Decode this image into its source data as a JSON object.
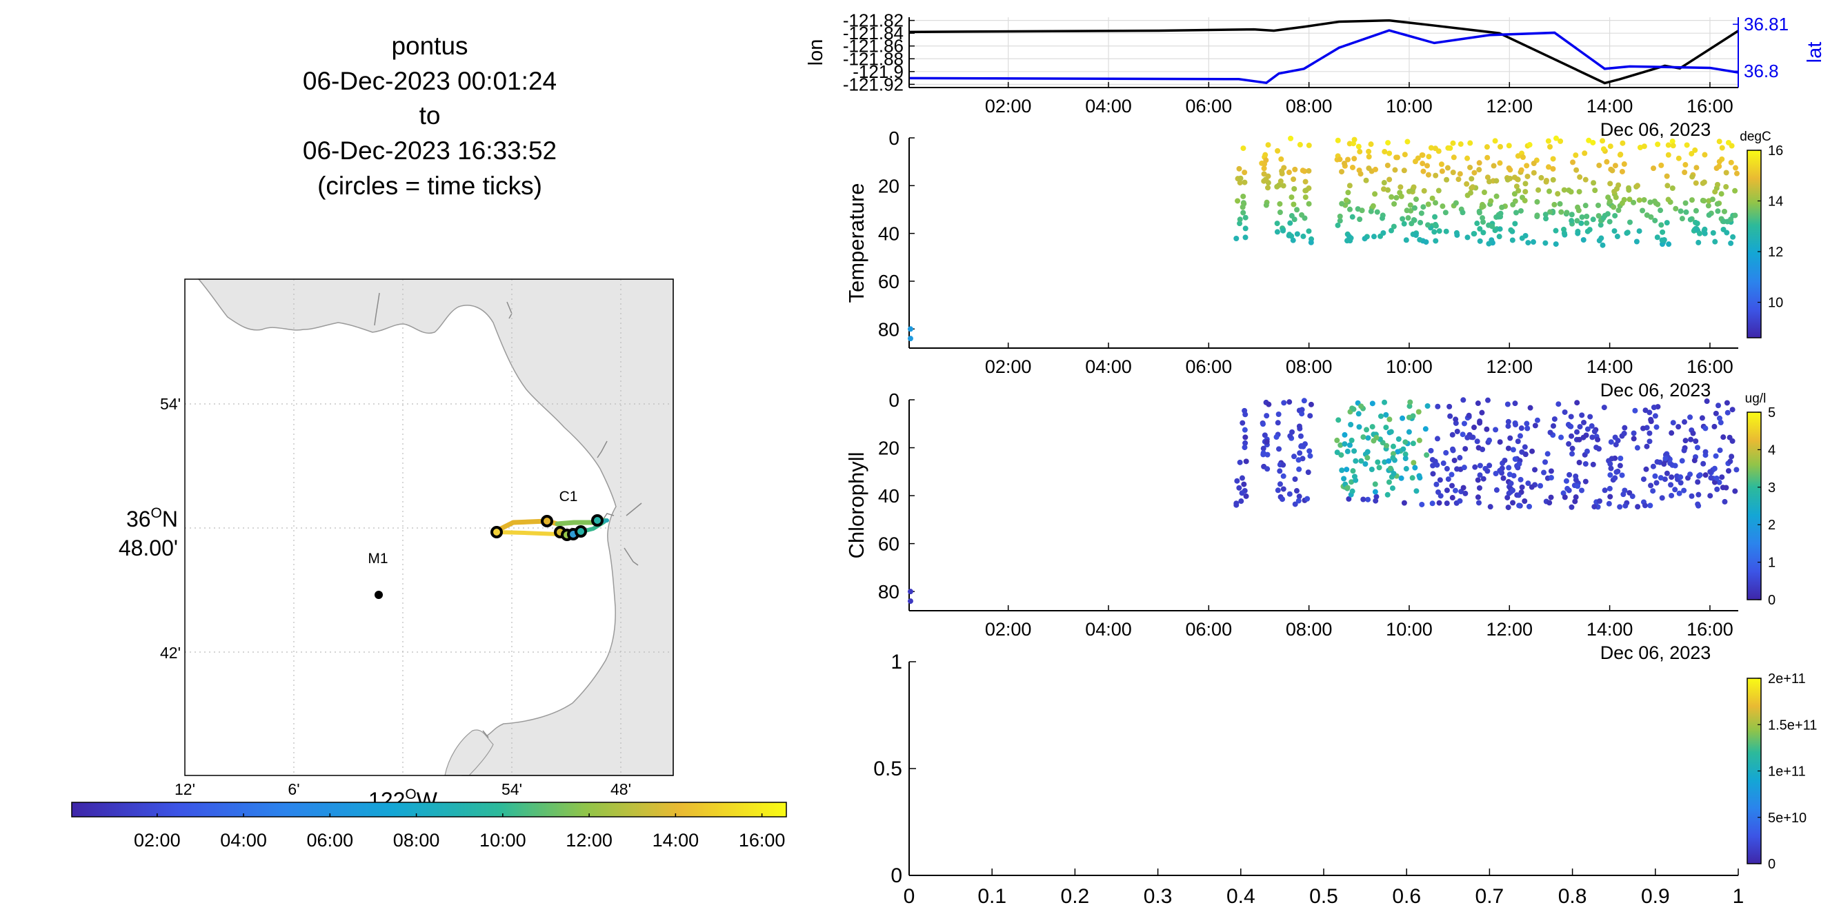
{
  "title": {
    "lines": [
      "pontus",
      "06-Dec-2023 00:01:24",
      "to",
      "06-Dec-2023 16:33:52",
      "(circles = time ticks)"
    ]
  },
  "map": {
    "lat_ticks": [
      "54'",
      "42'"
    ],
    "lat_main_line1": "36",
    "lat_main_deg": "O",
    "lat_main_suffix": "N",
    "lat_main_line2": "48.00'",
    "lon_ticks": [
      "12'",
      "6'",
      "54'",
      "48'"
    ],
    "lon_main": "122",
    "lon_main_deg": "O",
    "lon_main_suffix": "W",
    "stations": [
      {
        "name": "M1"
      },
      {
        "name": "C1"
      }
    ],
    "colors": {
      "land": "#e6e6e6",
      "coast": "#9a9a9a",
      "grid": "#bbbbbb"
    }
  },
  "time_colorbar": {
    "ticks": [
      "02:00",
      "04:00",
      "06:00",
      "08:00",
      "10:00",
      "12:00",
      "14:00",
      "16:00"
    ]
  },
  "panels": {
    "position": {
      "ylabel_left": "lon",
      "ylabel_right": "lat",
      "lon_ticks": [
        "-121.82",
        "-121.84",
        "-121.86",
        "-121.88",
        "-121.9",
        "-121.92"
      ],
      "lat_ticks": [
        "36.81",
        "36.8"
      ],
      "date_label": "Dec 06, 2023"
    },
    "temperature": {
      "ylabel": "Temperature",
      "yticks": [
        "0",
        "20",
        "40",
        "60",
        "80"
      ],
      "colorbar_title": "degC",
      "colorbar_ticks": [
        "16",
        "14",
        "12",
        "10"
      ],
      "date_label": "Dec 06, 2023"
    },
    "chlorophyll": {
      "ylabel": "Chlorophyll",
      "yticks": [
        "0",
        "20",
        "40",
        "60",
        "80"
      ],
      "colorbar_title": "ug/l",
      "colorbar_ticks": [
        "5",
        "4",
        "3",
        "2",
        "1",
        "0"
      ],
      "date_label": "Dec 06, 2023"
    },
    "empty": {
      "yticks": [
        "1",
        "0.5",
        "0"
      ],
      "xticks": [
        "0",
        "0.1",
        "0.2",
        "0.3",
        "0.4",
        "0.5",
        "0.6",
        "0.7",
        "0.8",
        "0.9",
        "1"
      ],
      "colorbar_ticks": [
        "2e+11",
        "1.5e+11",
        "1e+11",
        "5e+10",
        "0"
      ]
    },
    "time_ticks": [
      "02:00",
      "04:00",
      "06:00",
      "08:00",
      "10:00",
      "12:00",
      "14:00",
      "16:00"
    ]
  },
  "chart_data": [
    {
      "type": "line",
      "x_unit": "hour of day (06-Dec-2023)",
      "xlim": [
        0.023,
        16.565
      ],
      "series": [
        {
          "name": "lon",
          "axis": "left",
          "color": "#000000",
          "x": [
            0.02,
            5.0,
            6.9,
            7.3,
            7.9,
            8.6,
            9.6,
            10.5,
            11.8,
            13.9,
            14.2,
            15.1,
            15.4,
            16.57
          ],
          "y": [
            -121.838,
            -121.836,
            -121.834,
            -121.836,
            -121.83,
            -121.822,
            -121.82,
            -121.828,
            -121.84,
            -121.918,
            -121.912,
            -121.891,
            -121.895,
            -121.836
          ]
        },
        {
          "name": "lat",
          "axis": "right",
          "color": "#0000ee",
          "x": [
            0.02,
            6.6,
            7.15,
            7.4,
            7.9,
            8.6,
            9.6,
            10.5,
            11.6,
            12.9,
            13.9,
            14.4,
            16.0,
            16.57
          ],
          "y": [
            36.7985,
            36.7983,
            36.7975,
            36.7995,
            36.8005,
            36.805,
            36.8087,
            36.806,
            36.8077,
            36.8082,
            36.8005,
            36.801,
            36.8007,
            36.7997
          ]
        }
      ],
      "ylim_left": [
        -121.925,
        -121.815
      ],
      "ylim_right": [
        36.7965,
        36.8115
      ]
    },
    {
      "type": "scatter",
      "name": "Temperature",
      "ylabel": "Temperature",
      "xlim": [
        0.023,
        16.565
      ],
      "ylim": [
        88,
        0
      ],
      "clim": [
        8.6,
        16
      ],
      "colorbar_title": "degC"
    },
    {
      "type": "scatter",
      "name": "Chlorophyll",
      "ylabel": "Chlorophyll",
      "xlim": [
        0.023,
        16.565
      ],
      "ylim": [
        88,
        0
      ],
      "clim": [
        0,
        5
      ],
      "colorbar_title": "ug/l"
    },
    {
      "type": "scatter",
      "empty": true,
      "xlim": [
        0,
        1
      ],
      "ylim": [
        0,
        1
      ],
      "clim": [
        0,
        200000000000.0
      ]
    }
  ]
}
